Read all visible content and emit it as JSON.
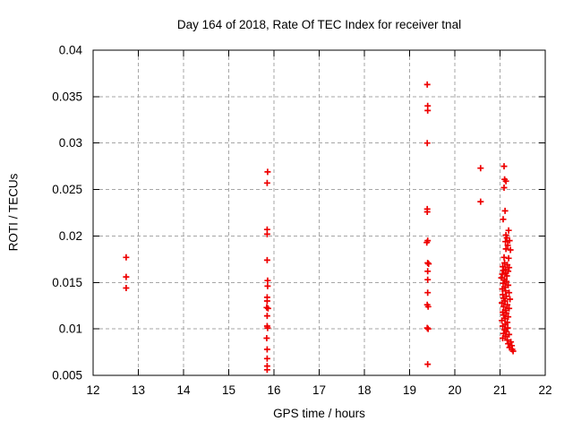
{
  "chart_data": {
    "type": "scatter",
    "title": "Day 164 of 2018, Rate Of TEC Index for receiver tnal",
    "xlabel": "GPS time / hours",
    "ylabel": "ROTI / TECUs",
    "xlim": [
      12,
      22
    ],
    "ylim": [
      0.005,
      0.04
    ],
    "xticks": [
      12,
      13,
      14,
      15,
      16,
      17,
      18,
      19,
      20,
      21,
      22
    ],
    "xtick_labels": [
      "12",
      "13",
      "14",
      "15",
      "16",
      "17",
      "18",
      "19",
      "20",
      "21",
      "22"
    ],
    "yticks": [
      0.005,
      0.01,
      0.015,
      0.02,
      0.025,
      0.03,
      0.035,
      0.04
    ],
    "ytick_labels": [
      "0.005",
      "0.01",
      "0.015",
      "0.02",
      "0.025",
      "0.03",
      "0.035",
      "0.04"
    ],
    "grid": true,
    "grid_style": "dashed",
    "legend_position": "none",
    "marker": {
      "shape": "plus",
      "color": "#ee0000",
      "size": 7
    },
    "axis_color": "#000000",
    "grid_color": "#a6a6a6",
    "series": [
      {
        "name": "ROTI",
        "points": [
          [
            12.73,
            0.0177
          ],
          [
            12.73,
            0.0156
          ],
          [
            12.73,
            0.0144
          ],
          [
            15.86,
            0.0269
          ],
          [
            15.85,
            0.0257
          ],
          [
            15.85,
            0.0207
          ],
          [
            15.85,
            0.0202
          ],
          [
            15.85,
            0.0174
          ],
          [
            15.86,
            0.0152
          ],
          [
            15.86,
            0.0146
          ],
          [
            15.85,
            0.0134
          ],
          [
            15.85,
            0.013
          ],
          [
            15.84,
            0.0123
          ],
          [
            15.87,
            0.0122
          ],
          [
            15.85,
            0.0114
          ],
          [
            15.85,
            0.0103
          ],
          [
            15.86,
            0.0101
          ],
          [
            15.84,
            0.009
          ],
          [
            15.85,
            0.0078
          ],
          [
            15.85,
            0.0068
          ],
          [
            15.85,
            0.006
          ],
          [
            15.85,
            0.0056
          ],
          [
            19.39,
            0.0363
          ],
          [
            19.4,
            0.034
          ],
          [
            19.4,
            0.0335
          ],
          [
            19.39,
            0.03
          ],
          [
            19.39,
            0.0229
          ],
          [
            19.39,
            0.0226
          ],
          [
            19.4,
            0.0195
          ],
          [
            19.38,
            0.0193
          ],
          [
            19.4,
            0.0171
          ],
          [
            19.42,
            0.017
          ],
          [
            19.4,
            0.0162
          ],
          [
            19.4,
            0.0153
          ],
          [
            19.4,
            0.0139
          ],
          [
            19.39,
            0.0126
          ],
          [
            19.41,
            0.0124
          ],
          [
            19.39,
            0.0101
          ],
          [
            19.41,
            0.01
          ],
          [
            19.4,
            0.0062
          ],
          [
            20.57,
            0.0273
          ],
          [
            20.57,
            0.0237
          ],
          [
            21.09,
            0.0275
          ],
          [
            21.1,
            0.0261
          ],
          [
            21.13,
            0.0259
          ],
          [
            21.09,
            0.0252
          ],
          [
            21.11,
            0.0227
          ],
          [
            21.07,
            0.0218
          ],
          [
            21.19,
            0.0206
          ],
          [
            21.13,
            0.0201
          ],
          [
            21.15,
            0.0198
          ],
          [
            21.21,
            0.0195
          ],
          [
            21.12,
            0.0194
          ],
          [
            21.17,
            0.019
          ],
          [
            21.13,
            0.0186
          ],
          [
            21.23,
            0.0185
          ],
          [
            21.09,
            0.0177
          ],
          [
            21.19,
            0.0176
          ],
          [
            21.1,
            0.0171
          ],
          [
            21.16,
            0.0169
          ],
          [
            21.06,
            0.0167
          ],
          [
            21.2,
            0.0166
          ],
          [
            21.12,
            0.0164
          ],
          [
            21.08,
            0.0163
          ],
          [
            21.18,
            0.0162
          ],
          [
            21.12,
            0.016
          ],
          [
            21.05,
            0.0159
          ],
          [
            21.15,
            0.0157
          ],
          [
            21.03,
            0.0155
          ],
          [
            21.1,
            0.0153
          ],
          [
            21.14,
            0.0151
          ],
          [
            21.07,
            0.0149
          ],
          [
            21.18,
            0.0147
          ],
          [
            21.11,
            0.0145
          ],
          [
            21.05,
            0.0143
          ],
          [
            21.12,
            0.0141
          ],
          [
            21.2,
            0.0139
          ],
          [
            21.06,
            0.0137
          ],
          [
            21.14,
            0.0135
          ],
          [
            21.08,
            0.0133
          ],
          [
            21.22,
            0.0132
          ],
          [
            21.11,
            0.013
          ],
          [
            21.04,
            0.0128
          ],
          [
            21.16,
            0.0126
          ],
          [
            21.08,
            0.0124
          ],
          [
            21.2,
            0.0122
          ],
          [
            21.12,
            0.012
          ],
          [
            21.06,
            0.0118
          ],
          [
            21.14,
            0.0117
          ],
          [
            21.08,
            0.0115
          ],
          [
            21.18,
            0.0113
          ],
          [
            21.11,
            0.0111
          ],
          [
            21.04,
            0.0109
          ],
          [
            21.16,
            0.0107
          ],
          [
            21.12,
            0.0105
          ],
          [
            21.06,
            0.0103
          ],
          [
            21.17,
            0.0101
          ],
          [
            21.1,
            0.0099
          ],
          [
            21.14,
            0.0097
          ],
          [
            21.08,
            0.0095
          ],
          [
            21.2,
            0.0094
          ],
          [
            21.12,
            0.0092
          ],
          [
            21.06,
            0.009
          ],
          [
            21.16,
            0.0088
          ],
          [
            21.24,
            0.0086
          ],
          [
            21.18,
            0.0084
          ],
          [
            21.26,
            0.0082
          ],
          [
            21.21,
            0.008
          ],
          [
            21.27,
            0.0078
          ],
          [
            21.29,
            0.0076
          ]
        ]
      }
    ]
  }
}
